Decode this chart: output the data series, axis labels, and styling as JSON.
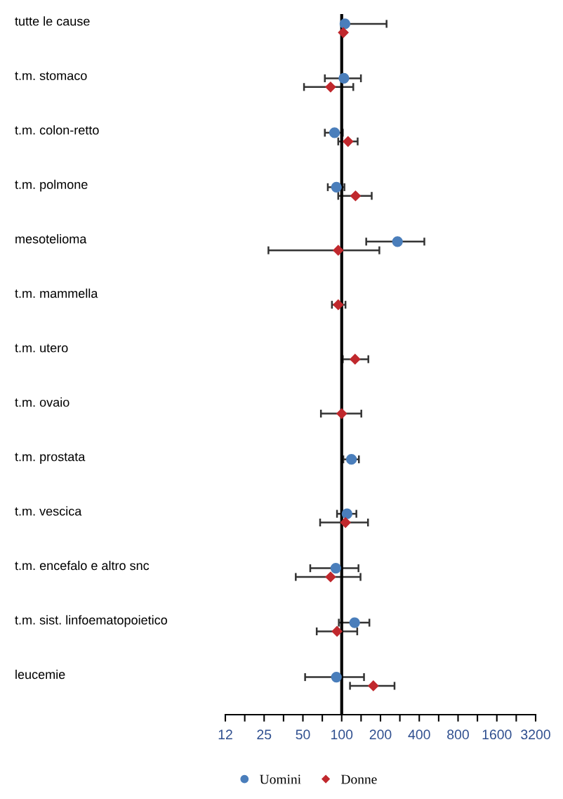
{
  "chart_data": {
    "type": "scatter",
    "orientation": "horizontal",
    "log": "x",
    "categories": [
      "tutte le cause",
      "t.m. stomaco",
      "t.m. colon-retto",
      "t.m. polmone",
      "mesotelioma",
      "t.m. mammella",
      "t.m. utero",
      "t.m. ovaio",
      "t.m. prostata",
      "t.m. vescica",
      "t.m. encefalo e altro snc",
      "t.m. sist. linfoematopoietico",
      "leucemie"
    ],
    "series": [
      {
        "name": "Uomini",
        "color": "#4a7ebb",
        "marker": "circle",
        "values": [
          106,
          104,
          88,
          91,
          271,
          null,
          null,
          null,
          119,
          110,
          90,
          126,
          91
        ],
        "errors": [
          [
            100,
            223
          ],
          [
            74,
            141
          ],
          [
            74,
            102
          ],
          [
            78,
            105
          ],
          [
            155,
            438
          ],
          null,
          null,
          null,
          [
            103,
            136
          ],
          [
            92,
            130
          ],
          [
            57,
            135
          ],
          [
            95,
            164
          ],
          [
            52,
            149
          ]
        ]
      },
      {
        "name": "Donne",
        "color": "#c0282d",
        "marker": "diamond",
        "values": [
          103,
          82,
          112,
          128,
          94,
          94,
          127,
          100,
          null,
          107,
          82,
          92,
          176
        ],
        "errors": [
          null,
          [
            51,
            123
          ],
          [
            94,
            133
          ],
          [
            94,
            171
          ],
          [
            27,
            196
          ],
          [
            84,
            107
          ],
          [
            102,
            161
          ],
          [
            69,
            142
          ],
          null,
          [
            68,
            160
          ],
          [
            44,
            140
          ],
          [
            64,
            132
          ],
          [
            116,
            257
          ]
        ]
      }
    ],
    "xlim": [
      12.5,
      3200
    ],
    "xticks": [
      {
        "value": 12.5,
        "label": "12"
      },
      {
        "value": 17.68,
        "label": null
      },
      25,
      {
        "value": 35.36,
        "label": null
      },
      50,
      {
        "value": 70.71,
        "label": null
      },
      100,
      {
        "value": 141.4,
        "label": null
      },
      200,
      {
        "value": 282.8,
        "label": null
      },
      400,
      {
        "value": 565.7,
        "label": null
      },
      800,
      {
        "value": 1131,
        "label": null
      },
      1600,
      {
        "value": 2263,
        "label": null
      },
      3200
    ],
    "ref_lines": [
      {
        "axis": "x",
        "value": 100,
        "color": "#000000"
      }
    ],
    "grid": false,
    "legend": "bottom"
  }
}
